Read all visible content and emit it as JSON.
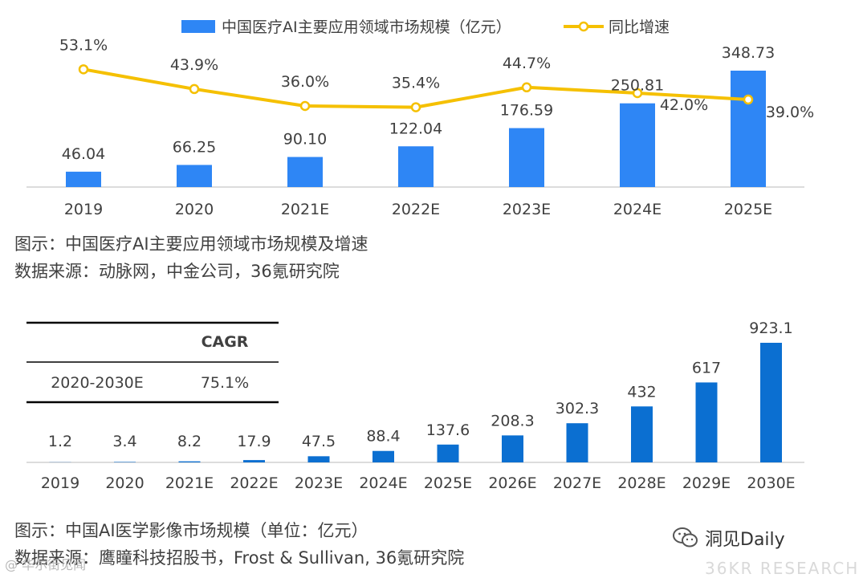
{
  "chart_data": [
    {
      "type": "bar+line",
      "title": "中国医疗AI主要应用领域市场规模及增速",
      "categories": [
        "2019",
        "2020",
        "2021E",
        "2022E",
        "2023E",
        "2024E",
        "2025E"
      ],
      "series": [
        {
          "name": "中国医疗AI主要应用领域市场规模（亿元）",
          "type": "bar",
          "values": [
            46.04,
            66.25,
            90.1,
            122.04,
            176.59,
            250.81,
            348.73
          ],
          "labels": [
            "46.04",
            "66.25",
            "90.10",
            "122.04",
            "176.59",
            "250.81",
            "348.73"
          ]
        },
        {
          "name": "同比增速",
          "type": "line",
          "values": [
            53.1,
            43.9,
            36.0,
            35.4,
            44.7,
            42.0,
            39.0
          ],
          "labels": [
            "53.1%",
            "43.9%",
            "36.0%",
            "35.4%",
            "44.7%",
            "42.0%",
            "39.0%"
          ]
        }
      ],
      "legend_position": "top",
      "colors": {
        "bar": "#2e86f5",
        "line": "#f5c000"
      }
    },
    {
      "type": "bar",
      "title": "中国AI医学影像市场规模（单位：亿元）",
      "categories": [
        "2019",
        "2020",
        "2021E",
        "2022E",
        "2023E",
        "2024E",
        "2025E",
        "2026E",
        "2027E",
        "2028E",
        "2029E",
        "2030E"
      ],
      "values": [
        1.2,
        3.4,
        8.2,
        17.9,
        47.5,
        88.4,
        137.6,
        208.3,
        302.3,
        432,
        617,
        923.1
      ],
      "labels": [
        "1.2",
        "3.4",
        "8.2",
        "17.9",
        "47.5",
        "88.4",
        "137.6",
        "208.3",
        "302.3",
        "432",
        "617",
        "923.1"
      ],
      "colors": {
        "bar": "#0b6fd1"
      },
      "table": {
        "header": "CAGR",
        "period": "2020-2030E",
        "value": "75.1%"
      }
    }
  ],
  "captions": {
    "chart1_title": "图示：中国医疗AI主要应用领域市场规模及增速",
    "chart1_source": "数据来源：动脉网，中金公司，36氪研究院",
    "chart2_title": "图示：中国AI医学影像市场规模（单位：亿元）",
    "chart2_source": "数据来源：鹰瞳科技招股书，Frost & Sullivan, 36氪研究院"
  },
  "watermarks": {
    "brand": "洞见Daily",
    "brand_icon": "wechat-icon",
    "left": "@ 华尔街见闻",
    "right": "36KR RESEARCH"
  }
}
